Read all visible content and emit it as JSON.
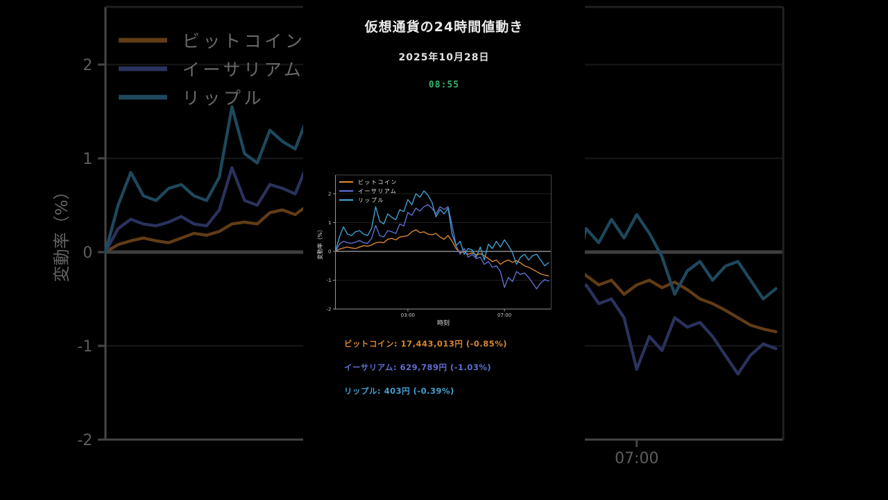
{
  "video": {
    "title": "仮想通貨の24時間値動き",
    "date": "2025年10月28日",
    "time": "08:55",
    "time_color": "#36b26b"
  },
  "chart_data": {
    "type": "line",
    "title": "",
    "xlabel": "時刻",
    "ylabel": "変動率（%）",
    "yticks": [
      2,
      1,
      0,
      -1,
      -2
    ],
    "ylim": [
      -2.0,
      2.65
    ],
    "xticks": [
      "03:00",
      "07:00"
    ],
    "x_interval_minutes": 10,
    "legend_position": "upper-left",
    "grid": true,
    "colors": {
      "zero_line": "#8a8a8a",
      "grid_line": "#2c2c2c",
      "spine": "#999999",
      "tick_label": "#cfcfcf",
      "axis_label": "#dadada",
      "legend_text": "#e8e8e8"
    },
    "x_times": [
      "00:00",
      "00:10",
      "00:20",
      "00:30",
      "00:40",
      "00:50",
      "01:00",
      "01:10",
      "01:20",
      "01:30",
      "01:40",
      "01:50",
      "02:00",
      "02:10",
      "02:20",
      "02:30",
      "02:40",
      "02:50",
      "03:00",
      "03:10",
      "03:20",
      "03:30",
      "03:40",
      "03:50",
      "04:00",
      "04:10",
      "04:20",
      "04:30",
      "04:40",
      "04:50",
      "05:00",
      "05:10",
      "05:20",
      "05:30",
      "05:40",
      "05:50",
      "06:00",
      "06:10",
      "06:20",
      "06:30",
      "06:40",
      "06:50",
      "07:00",
      "07:10",
      "07:20",
      "07:30",
      "07:40",
      "07:50",
      "08:00",
      "08:10",
      "08:20",
      "08:30",
      "08:40",
      "08:50"
    ],
    "series": [
      {
        "name": "ビットコイン",
        "color": "#d78630",
        "values": [
          0,
          0.08,
          0.12,
          0.15,
          0.12,
          0.1,
          0.15,
          0.2,
          0.18,
          0.22,
          0.3,
          0.32,
          0.3,
          0.42,
          0.45,
          0.4,
          0.5,
          0.52,
          0.55,
          0.68,
          0.75,
          0.65,
          0.68,
          0.6,
          0.58,
          0.62,
          0.5,
          0.42,
          0.55,
          0.35,
          0.1,
          -0.05,
          0,
          -0.1,
          -0.05,
          -0.12,
          -0.08,
          -0.15,
          -0.25,
          -0.35,
          -0.3,
          -0.45,
          -0.35,
          -0.3,
          -0.38,
          -0.32,
          -0.4,
          -0.5,
          -0.55,
          -0.62,
          -0.7,
          -0.78,
          -0.82,
          -0.85
        ]
      },
      {
        "name": "イーサリアム",
        "color": "#5e6ecf",
        "values": [
          0,
          0.25,
          0.35,
          0.3,
          0.28,
          0.32,
          0.38,
          0.3,
          0.28,
          0.45,
          0.9,
          0.55,
          0.5,
          0.72,
          0.68,
          0.62,
          0.95,
          0.88,
          1.35,
          1.25,
          1.5,
          1.4,
          1.55,
          1.62,
          1.5,
          1.3,
          1.55,
          1.45,
          1.55,
          0.9,
          0.2,
          -0.1,
          0.1,
          -0.2,
          -0.1,
          -0.25,
          -0.2,
          -0.45,
          -0.35,
          -0.55,
          -0.5,
          -0.7,
          -1.25,
          -0.9,
          -1.05,
          -0.7,
          -0.8,
          -0.75,
          -0.9,
          -1.1,
          -1.3,
          -1.1,
          -0.98,
          -1.03
        ]
      },
      {
        "name": "リップル",
        "color": "#42a0cf",
        "values": [
          0,
          0.5,
          0.85,
          0.6,
          0.55,
          0.68,
          0.72,
          0.6,
          0.55,
          0.8,
          1.55,
          1.05,
          0.95,
          1.3,
          1.18,
          1.1,
          1.45,
          1.38,
          1.8,
          1.62,
          2.0,
          1.88,
          2.1,
          1.95,
          1.7,
          1.2,
          1.45,
          1.3,
          1.5,
          0.6,
          0.2,
          0.35,
          -0.1,
          0.1,
          0.05,
          -0.2,
          0.15,
          -0.3,
          0.25,
          0.1,
          0.35,
          0.15,
          0.4,
          0.2,
          -0.05,
          -0.45,
          -0.2,
          -0.1,
          -0.3,
          -0.15,
          -0.1,
          -0.3,
          -0.5,
          -0.39
        ]
      }
    ]
  },
  "prices": [
    {
      "name": "ビットコイン",
      "price": "17,443,013円",
      "change": "(-0.85%)",
      "color": "#d78630"
    },
    {
      "name": "イーサリアム",
      "price": "629,789円",
      "change": "(-1.03%)",
      "color": "#5e6ecf"
    },
    {
      "name": "リップル",
      "price": "403円",
      "change": "(-0.39%)",
      "color": "#42a0cf"
    }
  ]
}
